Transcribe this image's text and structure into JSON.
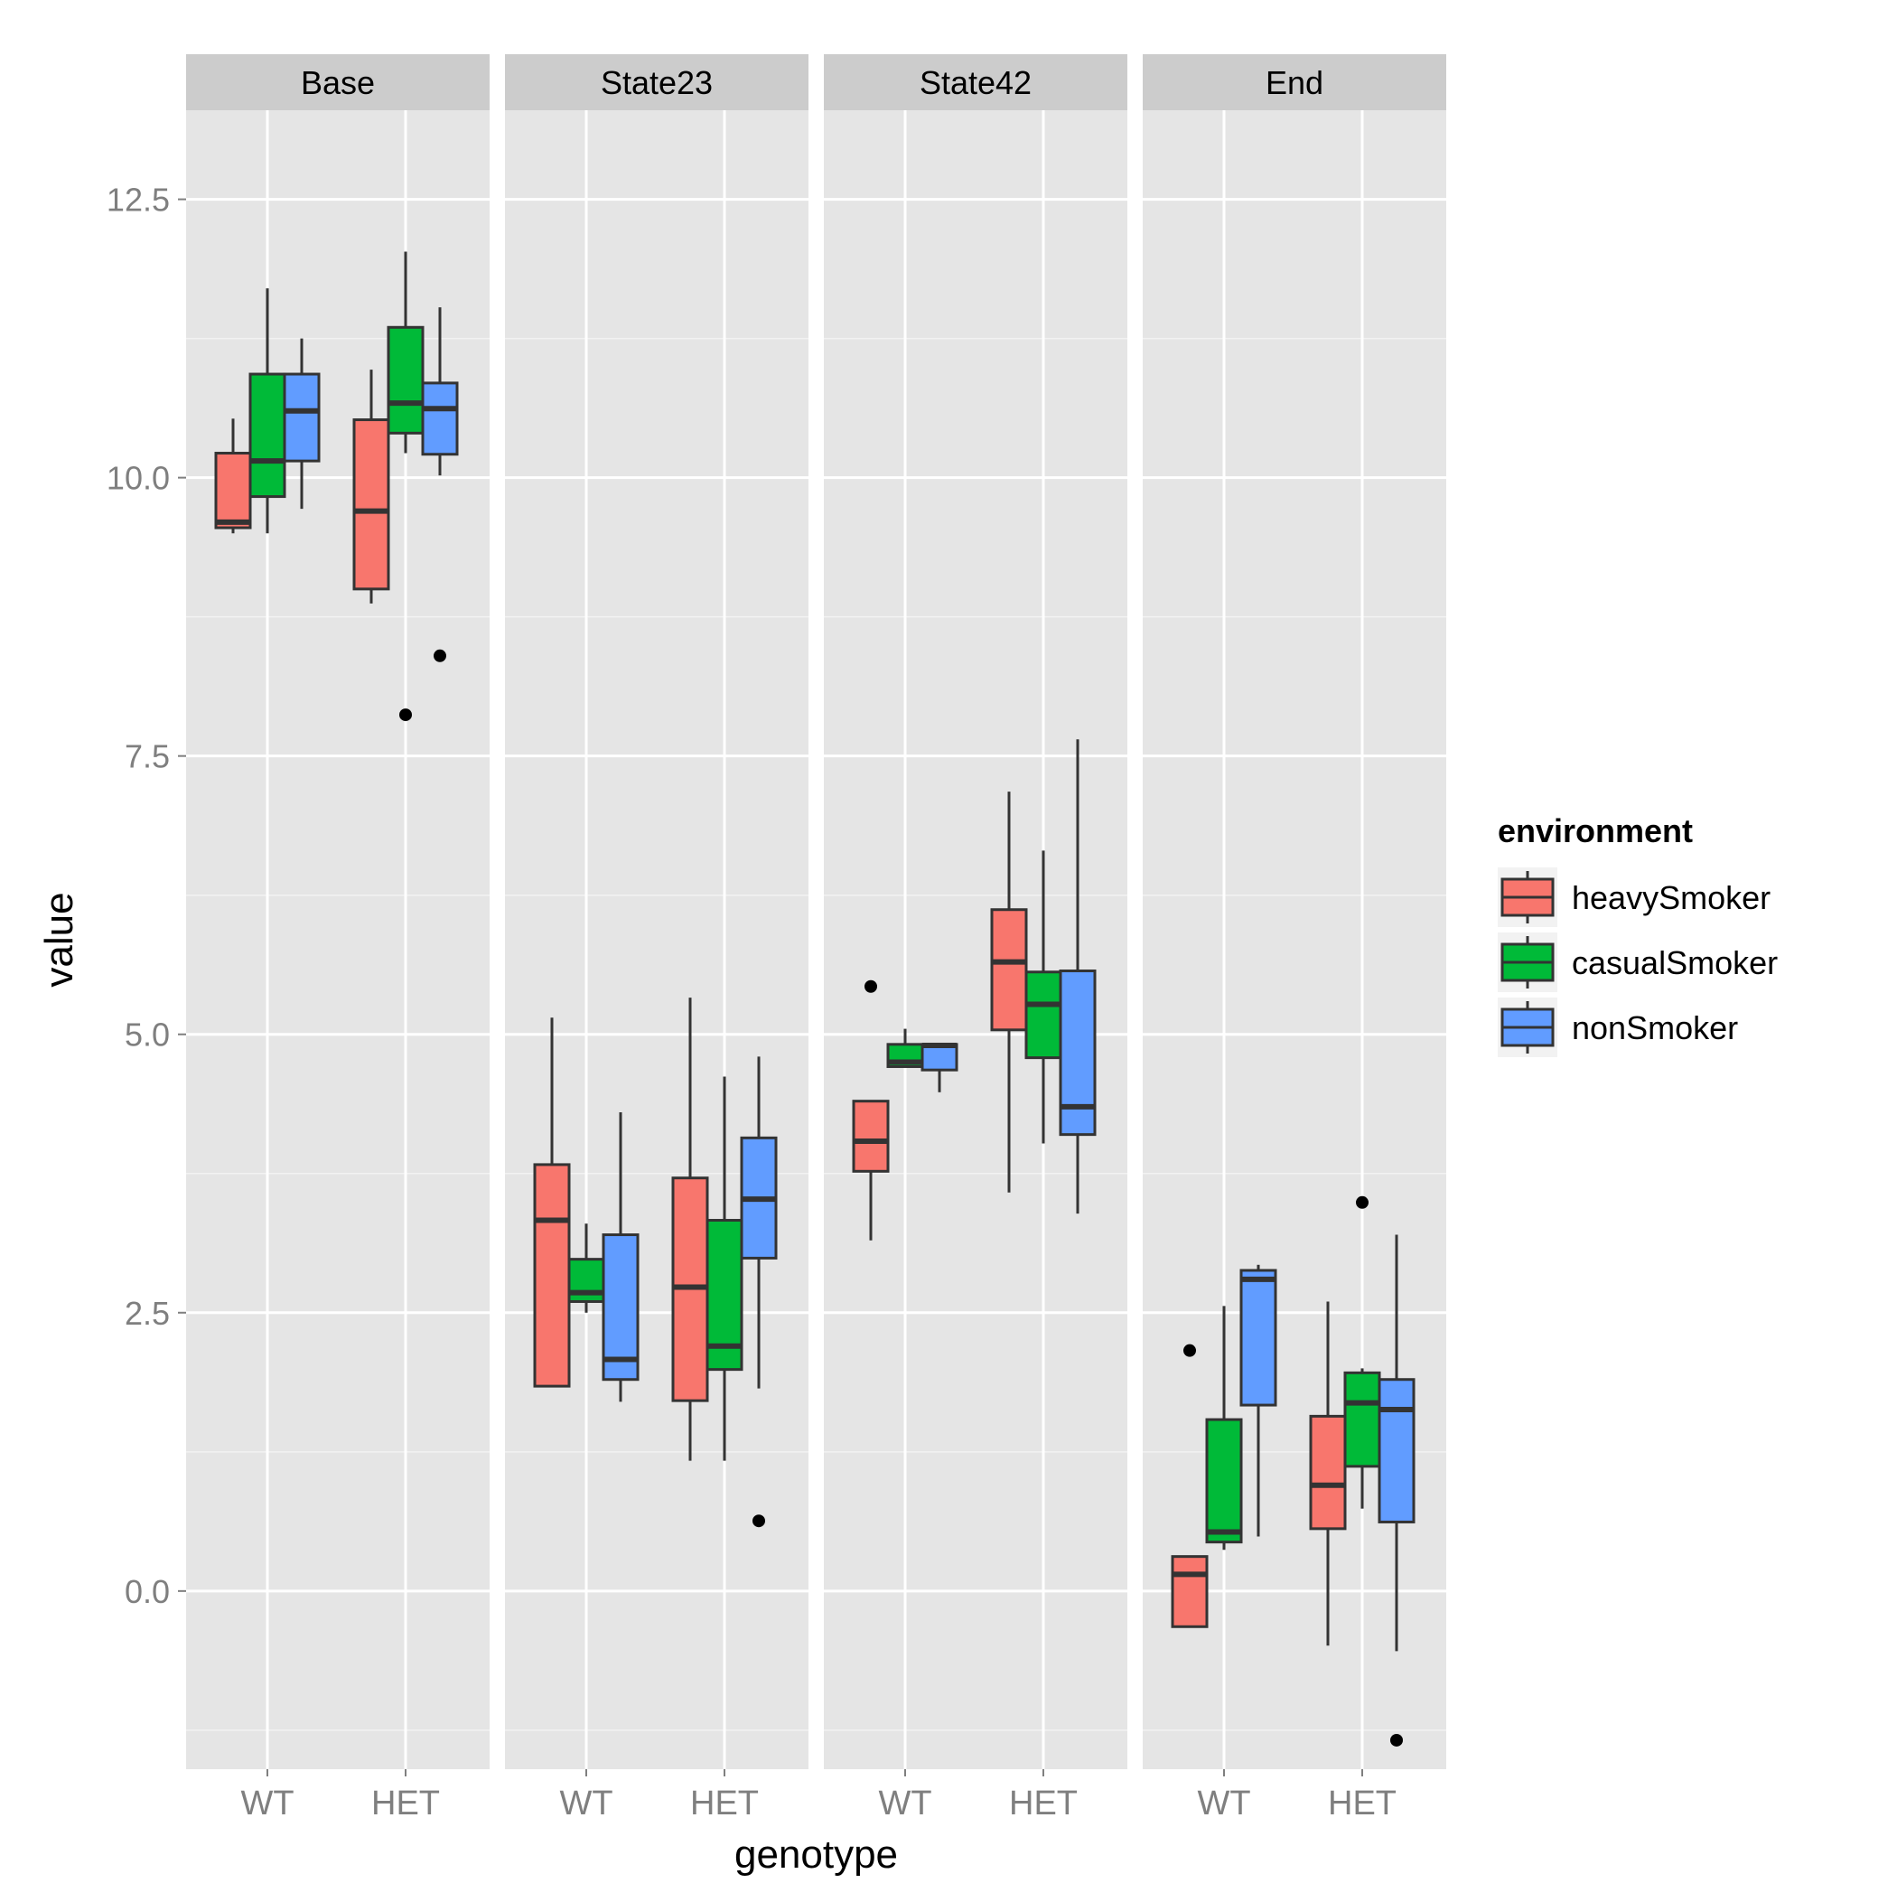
{
  "chart_data": {
    "type": "boxplot",
    "xlabel": "genotype",
    "ylabel": "value",
    "ylim": [
      -1.6,
      13.3
    ],
    "y_ticks": [
      0.0,
      2.5,
      5.0,
      7.5,
      10.0,
      12.5
    ],
    "y_tick_labels": [
      "0.0",
      "2.5",
      "5.0",
      "7.5",
      "10.0",
      "12.5"
    ],
    "categories": [
      "WT",
      "HET"
    ],
    "legend": {
      "title": "environment",
      "position": "right",
      "entries": [
        {
          "name": "heavySmoker",
          "color": "#F8766D"
        },
        {
          "name": "casualSmoker",
          "color": "#00BA38"
        },
        {
          "name": "nonSmoker",
          "color": "#619CFF"
        }
      ]
    },
    "colors": {
      "panel_bg": "#E5E5E5",
      "strip_bg": "#CCCCCC",
      "grid": "#FFFFFF",
      "box_stroke": "#333333",
      "tick_label": "#7F7F7F",
      "text": "#000000"
    },
    "facets": [
      {
        "title": "Base",
        "groups": [
          {
            "genotype": "WT",
            "series": "heavySmoker",
            "min": 9.5,
            "q1": 9.55,
            "median": 9.6,
            "q3": 10.22,
            "max": 10.53,
            "outliers": []
          },
          {
            "genotype": "WT",
            "series": "casualSmoker",
            "min": 9.5,
            "q1": 9.83,
            "median": 10.15,
            "q3": 10.93,
            "max": 11.7,
            "outliers": []
          },
          {
            "genotype": "WT",
            "series": "nonSmoker",
            "min": 9.72,
            "q1": 10.15,
            "median": 10.6,
            "q3": 10.93,
            "max": 11.25,
            "outliers": []
          },
          {
            "genotype": "HET",
            "series": "heavySmoker",
            "min": 8.87,
            "q1": 9.0,
            "median": 9.7,
            "q3": 10.52,
            "max": 10.97,
            "outliers": []
          },
          {
            "genotype": "HET",
            "series": "casualSmoker",
            "min": 10.22,
            "q1": 10.4,
            "median": 10.67,
            "q3": 11.35,
            "max": 12.03,
            "outliers": [
              7.87
            ]
          },
          {
            "genotype": "HET",
            "series": "nonSmoker",
            "min": 10.02,
            "q1": 10.21,
            "median": 10.62,
            "q3": 10.85,
            "max": 11.53,
            "outliers": [
              8.4
            ]
          }
        ]
      },
      {
        "title": "State23",
        "groups": [
          {
            "genotype": "WT",
            "series": "heavySmoker",
            "min": 1.84,
            "q1": 1.84,
            "median": 3.33,
            "q3": 3.83,
            "max": 5.15,
            "outliers": []
          },
          {
            "genotype": "WT",
            "series": "casualSmoker",
            "min": 2.5,
            "q1": 2.6,
            "median": 2.68,
            "q3": 2.98,
            "max": 3.3,
            "outliers": []
          },
          {
            "genotype": "WT",
            "series": "nonSmoker",
            "min": 1.7,
            "q1": 1.9,
            "median": 2.08,
            "q3": 3.2,
            "max": 4.3,
            "outliers": []
          },
          {
            "genotype": "HET",
            "series": "heavySmoker",
            "min": 1.17,
            "q1": 1.71,
            "median": 2.73,
            "q3": 3.71,
            "max": 5.33,
            "outliers": []
          },
          {
            "genotype": "HET",
            "series": "casualSmoker",
            "min": 1.17,
            "q1": 1.99,
            "median": 2.2,
            "q3": 3.33,
            "max": 4.62,
            "outliers": []
          },
          {
            "genotype": "HET",
            "series": "nonSmoker",
            "min": 1.82,
            "q1": 2.99,
            "median": 3.52,
            "q3": 4.07,
            "max": 4.8,
            "outliers": [
              0.63
            ]
          }
        ]
      },
      {
        "title": "State42",
        "groups": [
          {
            "genotype": "WT",
            "series": "heavySmoker",
            "min": 3.15,
            "q1": 3.77,
            "median": 4.04,
            "q3": 4.4,
            "max": 4.4,
            "outliers": [
              5.43
            ]
          },
          {
            "genotype": "WT",
            "series": "casualSmoker",
            "min": 4.71,
            "q1": 4.71,
            "median": 4.75,
            "q3": 4.91,
            "max": 5.05,
            "outliers": []
          },
          {
            "genotype": "WT",
            "series": "nonSmoker",
            "min": 4.48,
            "q1": 4.68,
            "median": 4.9,
            "q3": 4.91,
            "max": 4.91,
            "outliers": []
          },
          {
            "genotype": "HET",
            "series": "heavySmoker",
            "min": 3.58,
            "q1": 5.04,
            "median": 5.65,
            "q3": 6.12,
            "max": 7.18,
            "outliers": []
          },
          {
            "genotype": "HET",
            "series": "casualSmoker",
            "min": 4.02,
            "q1": 4.79,
            "median": 5.27,
            "q3": 5.56,
            "max": 6.65,
            "outliers": []
          },
          {
            "genotype": "HET",
            "series": "nonSmoker",
            "min": 3.39,
            "q1": 4.1,
            "median": 4.35,
            "q3": 5.57,
            "max": 7.65,
            "outliers": []
          }
        ]
      },
      {
        "title": "End",
        "groups": [
          {
            "genotype": "WT",
            "series": "heavySmoker",
            "min": -0.32,
            "q1": -0.32,
            "median": 0.15,
            "q3": 0.31,
            "max": 0.31,
            "outliers": [
              2.16
            ]
          },
          {
            "genotype": "WT",
            "series": "casualSmoker",
            "min": 0.37,
            "q1": 0.44,
            "median": 0.53,
            "q3": 1.54,
            "max": 2.56,
            "outliers": []
          },
          {
            "genotype": "WT",
            "series": "nonSmoker",
            "min": 0.49,
            "q1": 1.67,
            "median": 2.8,
            "q3": 2.88,
            "max": 2.93,
            "outliers": []
          },
          {
            "genotype": "HET",
            "series": "heavySmoker",
            "min": -0.49,
            "q1": 0.56,
            "median": 0.95,
            "q3": 1.57,
            "max": 2.6,
            "outliers": []
          },
          {
            "genotype": "HET",
            "series": "casualSmoker",
            "min": 0.74,
            "q1": 1.12,
            "median": 1.69,
            "q3": 1.96,
            "max": 2.0,
            "outliers": [
              3.49
            ]
          },
          {
            "genotype": "HET",
            "series": "nonSmoker",
            "min": -0.54,
            "q1": 0.62,
            "median": 1.63,
            "q3": 1.9,
            "max": 3.2,
            "outliers": [
              -1.34
            ]
          }
        ]
      }
    ]
  }
}
